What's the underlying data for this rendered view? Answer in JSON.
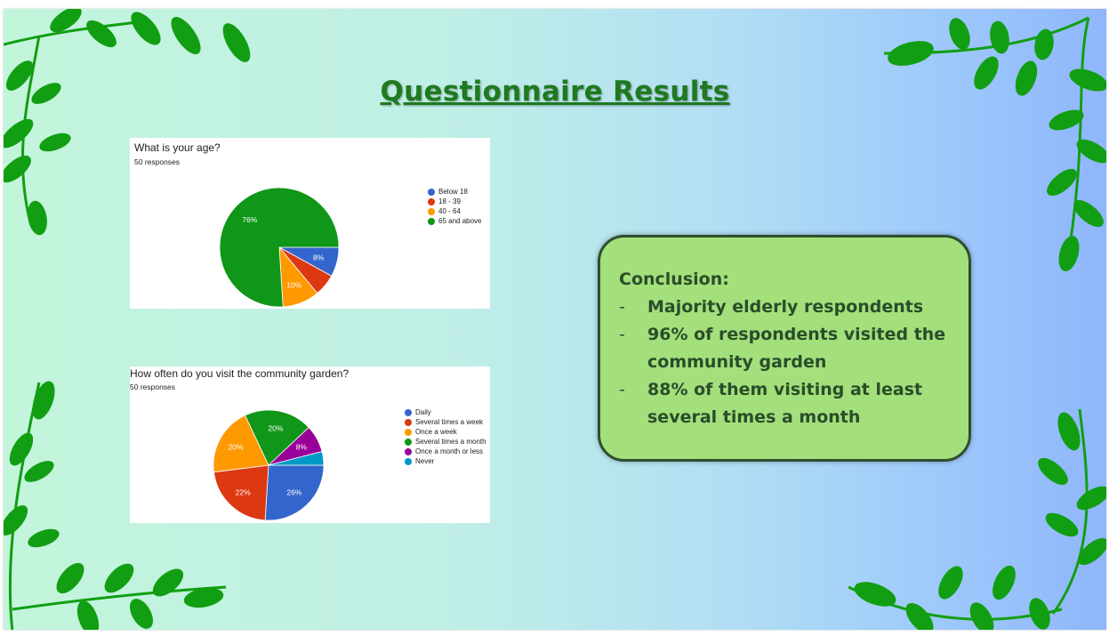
{
  "slide": {
    "title": "Questionnaire Results"
  },
  "age_chart": {
    "question": "What is your age?",
    "responses": "50 responses"
  },
  "visit_chart": {
    "question": "How often do you visit the community garden?",
    "responses": "50 responses"
  },
  "chart_data": [
    {
      "type": "pie",
      "title": "What is your age?",
      "subtitle": "50 responses",
      "legend_position": "right",
      "slices": [
        {
          "label": "Below 18",
          "value": 8,
          "display": "8%",
          "color": "#3366cc"
        },
        {
          "label": "18 - 39",
          "value": 6,
          "display": "",
          "color": "#dc3912"
        },
        {
          "label": "40 - 64",
          "value": 10,
          "display": "10%",
          "color": "#ff9900"
        },
        {
          "label": "65 and above",
          "value": 76,
          "display": "76%",
          "color": "#109618"
        }
      ]
    },
    {
      "type": "pie",
      "title": "How often do you visit the community garden?",
      "subtitle": "50 responses",
      "legend_position": "right",
      "slices": [
        {
          "label": "Daily",
          "value": 26,
          "display": "26%",
          "color": "#3366cc"
        },
        {
          "label": "Several times a week",
          "value": 22,
          "display": "22%",
          "color": "#dc3912"
        },
        {
          "label": "Once a week",
          "value": 20,
          "display": "20%",
          "color": "#ff9900"
        },
        {
          "label": "Several times a month",
          "value": 20,
          "display": "20%",
          "color": "#109618"
        },
        {
          "label": "Once a month or less",
          "value": 8,
          "display": "8%",
          "color": "#990099"
        },
        {
          "label": "Never",
          "value": 4,
          "display": "",
          "color": "#0099c6"
        }
      ]
    }
  ],
  "conclusion": {
    "heading": "Conclusion:",
    "bullet_marker": "-",
    "points": [
      "Majority elderly respondents",
      "96% of respondents visited the community garden",
      "88% of them visiting at least several times a month"
    ]
  },
  "colors": {
    "title": "#1f7a1f",
    "conclusion_fill": "#a3e07b",
    "conclusion_border": "#2e4f2e",
    "leaf": "#129e12"
  }
}
